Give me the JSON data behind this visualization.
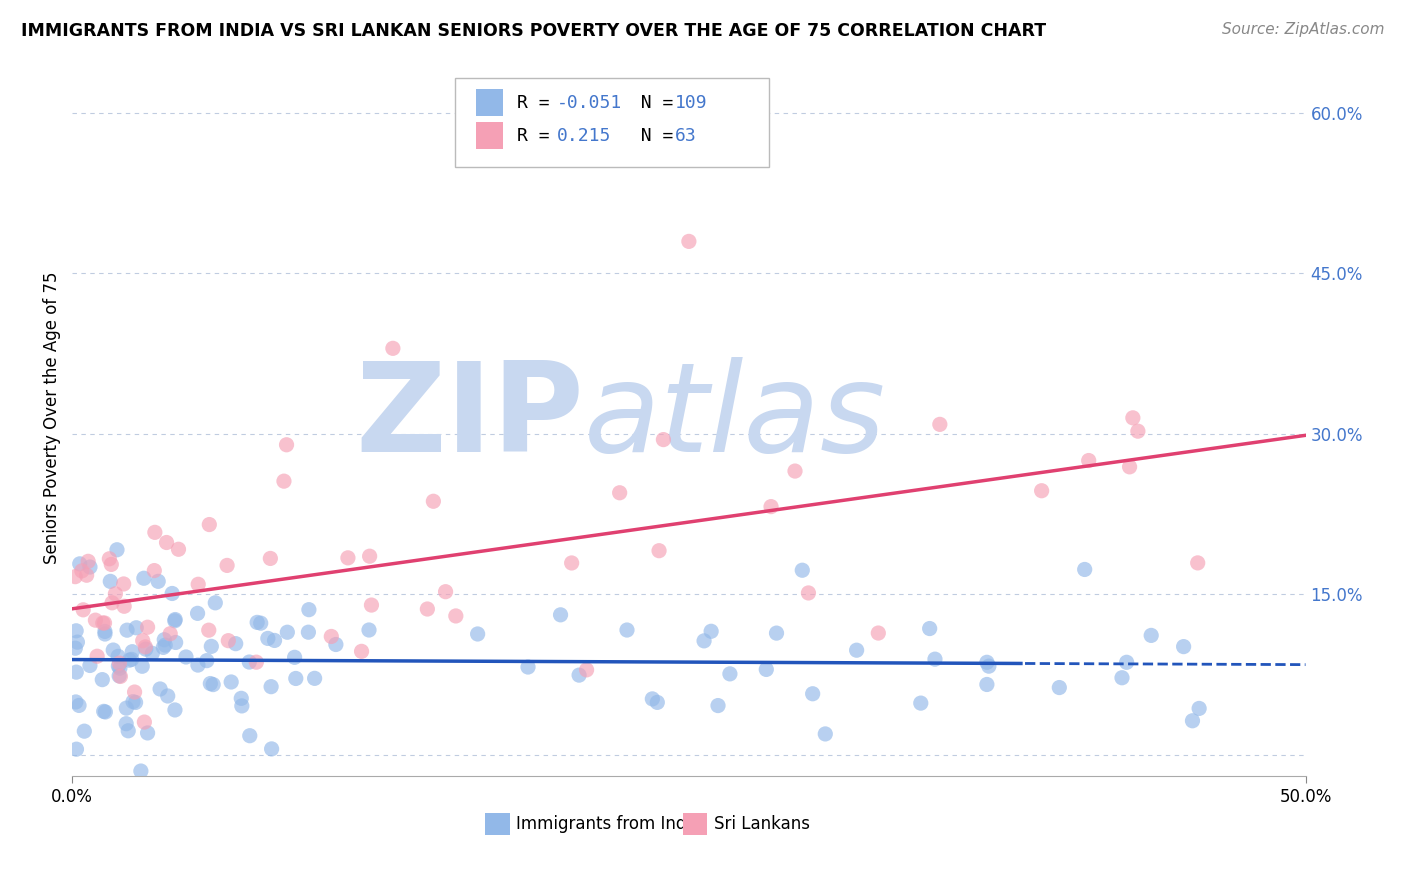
{
  "title": "IMMIGRANTS FROM INDIA VS SRI LANKAN SENIORS POVERTY OVER THE AGE OF 75 CORRELATION CHART",
  "source": "Source: ZipAtlas.com",
  "xlabel_blue": "Immigrants from India",
  "xlabel_pink": "Sri Lankans",
  "ylabel": "Seniors Poverty Over the Age of 75",
  "xlim": [
    0.0,
    0.5
  ],
  "ylim": [
    -0.02,
    0.65
  ],
  "yticks": [
    0.0,
    0.15,
    0.3,
    0.45,
    0.6
  ],
  "ytick_labels": [
    "",
    "15.0%",
    "30.0%",
    "45.0%",
    "60.0%"
  ],
  "R_blue": -0.051,
  "N_blue": 109,
  "R_pink": 0.215,
  "N_pink": 63,
  "blue_color": "#92b8e8",
  "pink_color": "#f5a0b5",
  "line_blue": "#2255bb",
  "line_pink": "#e04070",
  "grid_color": "#c0cce0",
  "background_color": "#ffffff",
  "watermark_zip": "ZIP",
  "watermark_atlas": "atlas",
  "watermark_color": "#c8d8f0",
  "title_fontsize": 12.5,
  "source_fontsize": 11,
  "label_fontsize": 12,
  "tick_fontsize": 12,
  "legend_fontsize": 13,
  "accent_color": "#4477cc"
}
